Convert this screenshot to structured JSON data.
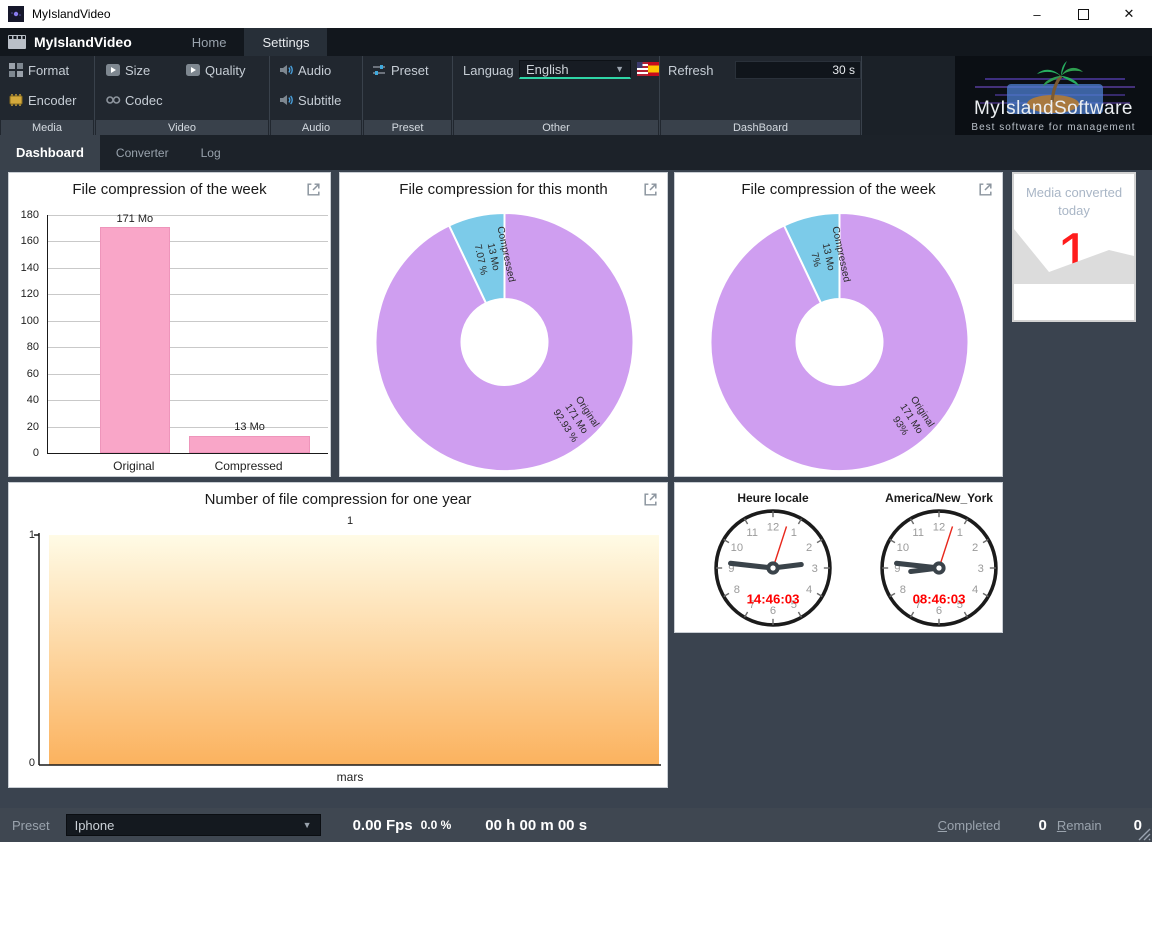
{
  "window": {
    "title": "MyIslandVideo"
  },
  "ribbon": {
    "app_name": "MyIslandVideo",
    "nav": {
      "home": "Home",
      "settings": "Settings"
    },
    "buttons": {
      "format": "Format",
      "encoder": "Encoder",
      "size": "Size",
      "quality": "Quality",
      "codec": "Codec",
      "audio": "Audio",
      "subtitle": "Subtitle",
      "preset": "Preset"
    },
    "language": {
      "label": "Languag",
      "value": "English"
    },
    "refresh": {
      "label": "Refresh",
      "value": "30 s"
    },
    "captions": {
      "media": "Media",
      "video": "Video",
      "audio": "Audio",
      "preset": "Preset",
      "other": "Other",
      "dashboard": "DashBoard"
    },
    "logo": {
      "title": "MyIslandSoftware",
      "tagline": "Best software for management"
    }
  },
  "tabs": {
    "dashboard": "Dashboard",
    "converter": "Converter",
    "log": "Log"
  },
  "cards": {
    "media_converted": {
      "label": "Media converted today",
      "value": "1"
    },
    "clocks": {
      "local": {
        "title": "Heure locale",
        "time": "14:46:03"
      },
      "newyork": {
        "title": "America/New_York",
        "time": "08:46:03"
      }
    }
  },
  "chart_data": [
    {
      "type": "bar",
      "title": "File compression of the week",
      "categories": [
        "Original",
        "Compressed"
      ],
      "values": [
        171,
        13
      ],
      "value_labels": [
        "171 Mo",
        "13 Mo"
      ],
      "ylim": [
        0,
        180
      ],
      "ytick_step": 20,
      "grid": true,
      "bar_color": "#f9a6c8"
    },
    {
      "type": "donut",
      "title": "File compression for this month",
      "slices": [
        {
          "label": "Original",
          "value": 171,
          "display": [
            "Original",
            "171 Mo",
            "92.93 %"
          ],
          "color": "#cf9ef0"
        },
        {
          "label": "Compressed",
          "value": 13,
          "display": [
            "Compressed",
            "13 Mo",
            "7.07 %"
          ],
          "color": "#7ccbe9"
        }
      ]
    },
    {
      "type": "donut",
      "title": "File compression of the week",
      "slices": [
        {
          "label": "Original",
          "value": 171,
          "display": [
            "Original",
            "171 Mo",
            "93%"
          ],
          "color": "#cf9ef0"
        },
        {
          "label": "Compressed",
          "value": 13,
          "display": [
            "Compressed",
            "13 Mo",
            "7%"
          ],
          "color": "#7ccbe9"
        }
      ]
    },
    {
      "type": "area",
      "title": "Number of file compression for one year",
      "categories": [
        "mars"
      ],
      "values": [
        1
      ],
      "value_labels": [
        "1"
      ],
      "ylim": [
        0,
        1
      ],
      "fill_gradient": [
        "#fffbe6",
        "#fbb25e"
      ]
    }
  ],
  "statusbar": {
    "preset_label": "Preset",
    "preset_value": "Iphone",
    "fps": "0.00 Fps",
    "percent": "0.0 %",
    "elapsed": "00 h 00 m 00 s",
    "completed_label": "Completed",
    "completed_value": "0",
    "remain_label": "Remain",
    "remain_value": "0"
  }
}
